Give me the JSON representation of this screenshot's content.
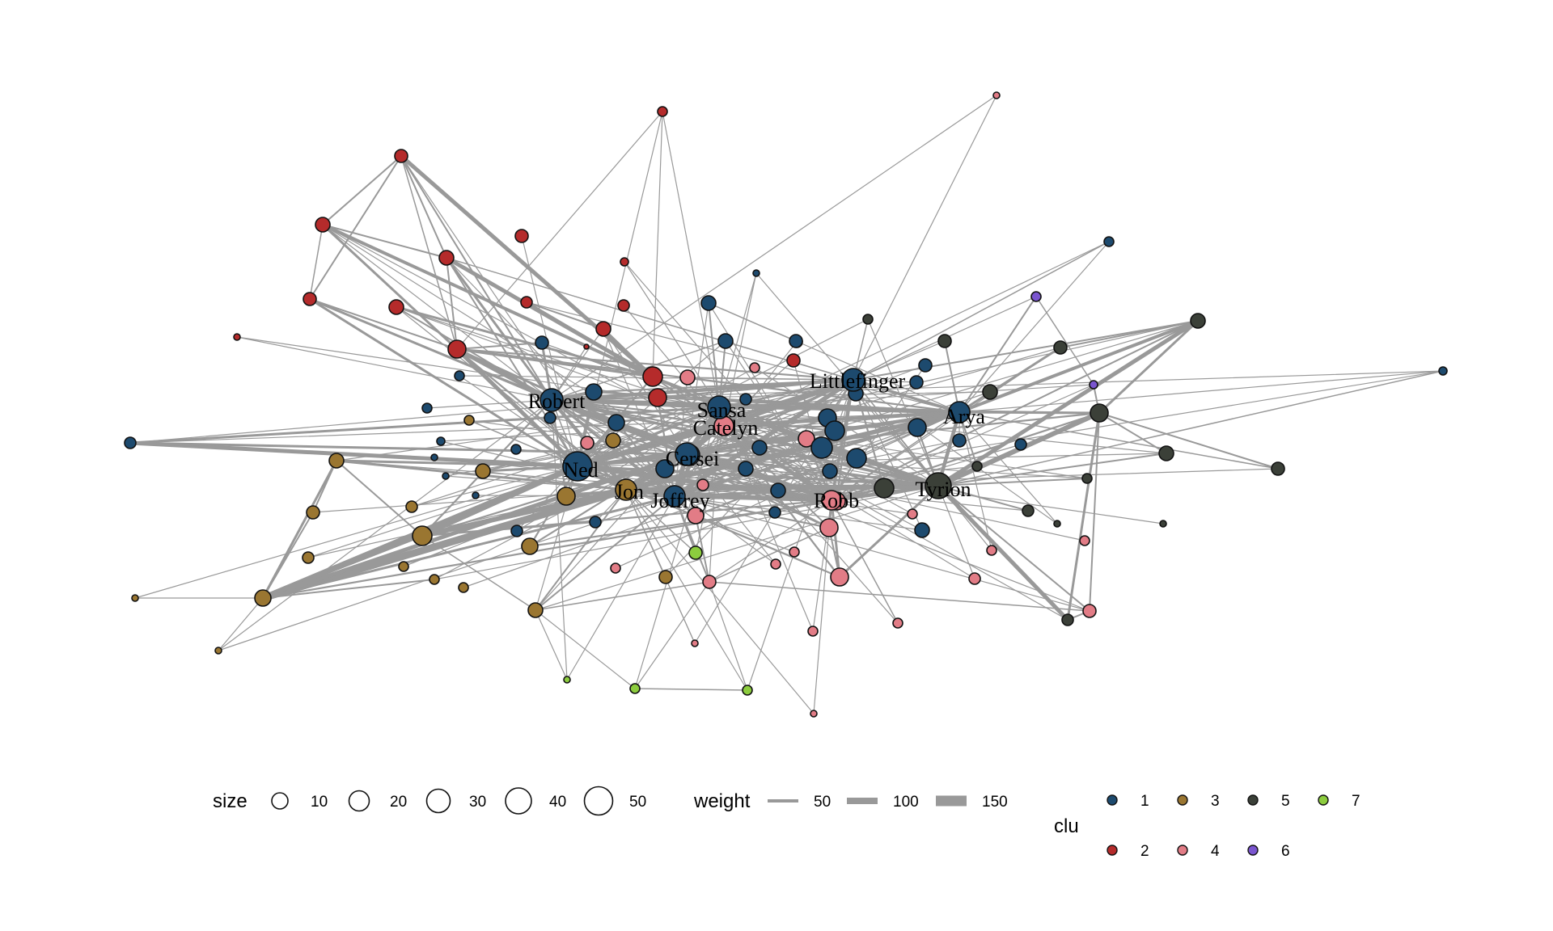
{
  "colors": {
    "edge": "#999999",
    "node_stroke": "#111111",
    "clusters": {
      "1": "#1d4a6e",
      "2": "#b52b2b",
      "3": "#9a7631",
      "4": "#e27c86",
      "5": "#3b4038",
      "6": "#7a55cf",
      "7": "#8ccc3e"
    }
  },
  "labels": [
    "Littlefinger",
    "Robert",
    "Sansa",
    "Catelyn",
    "Arya",
    "Cersei",
    "Ned",
    "Jon",
    "Joffrey",
    "Robb",
    "Tyrion"
  ],
  "legend": {
    "size": {
      "title": "size",
      "entries": [
        {
          "label": "10",
          "value": 10
        },
        {
          "label": "20",
          "value": 20
        },
        {
          "label": "30",
          "value": 30
        },
        {
          "label": "40",
          "value": 40
        },
        {
          "label": "50",
          "value": 50
        }
      ]
    },
    "weight": {
      "title": "weight",
      "entries": [
        {
          "label": "50",
          "value": 50
        },
        {
          "label": "100",
          "value": 100
        },
        {
          "label": "150",
          "value": 150
        }
      ]
    },
    "clu": {
      "title": "clu",
      "entries": [
        "1",
        "3",
        "5",
        "7",
        "2",
        "4",
        "6"
      ]
    }
  }
}
